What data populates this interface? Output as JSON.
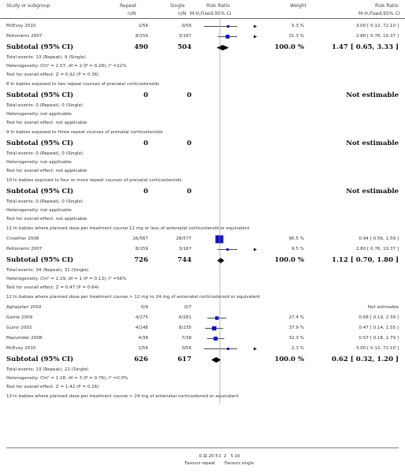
{
  "chart_data": {
    "type": "forest",
    "columns": [
      "Study or subgroup",
      "Repeat",
      "Single",
      "Risk Ratio",
      "Weight",
      "Risk Ratio"
    ],
    "subheaders": {
      "repeat": "n/N",
      "single": "n/N",
      "rr": "M-H,Fixed,95% CI",
      "rr2": "M-H,Fixed,95% CI"
    },
    "x_axis": {
      "scale": "log",
      "ticks": [
        "0.1",
        "0.2",
        "0.5",
        "1",
        "2",
        "5",
        "10"
      ],
      "tick_values": [
        0.1,
        0.2,
        0.5,
        1,
        2,
        5,
        10
      ],
      "left_label": "Favours repeat",
      "right_label": "Favours single"
    },
    "rows": [
      {
        "kind": "study",
        "name": "McEvoy 2010",
        "repeat": "1/56",
        "single": "0/56",
        "est": 3.0,
        "lo": 0.12,
        "hi": 72.1,
        "weight": "5.3 %",
        "ci_text": "3.00 [ 0.12, 72.10 ]"
      },
      {
        "kind": "study",
        "name": "Peltoniemi 2007",
        "repeat": "8/159",
        "single": "3/167",
        "est": 2.8,
        "lo": 0.76,
        "hi": 10.37,
        "weight": "31.3 %",
        "ci_text": "2.80 [ 0.76, 10.37 ]"
      },
      {
        "kind": "subtotal",
        "name": "Subtotal (95% CI)",
        "repeat": "490",
        "single": "504",
        "est": 1.47,
        "lo": 0.65,
        "hi": 3.33,
        "weight": "100.0 %",
        "ci_text": "1.47 [ 0.65, 3.33 ]"
      },
      {
        "kind": "stat",
        "text": "Total events: 13 (Repeat), 9 (Single)"
      },
      {
        "kind": "stat",
        "text": "Heterogeneity: Chi² = 2.57, df = 2 (P = 0.28); I² =22%"
      },
      {
        "kind": "stat",
        "text": "Test for overall effect: Z = 0.92 (P = 0.36)"
      },
      {
        "kind": "group",
        "text": "8 In babies exposed to two repeat courses of prenatal corticosteroids"
      },
      {
        "kind": "subtotal",
        "name": "Subtotal (95% CI)",
        "repeat": "0",
        "single": "0",
        "ci_text": "Not estimable"
      },
      {
        "kind": "stat",
        "text": "Total events: 0 (Repeat), 0 (Single)"
      },
      {
        "kind": "stat",
        "text": "Heterogeneity: not applicable"
      },
      {
        "kind": "stat",
        "text": "Test for overall effect: not applicable"
      },
      {
        "kind": "group",
        "text": "9 In babies exposed to three repeat courses of prenatal corticosteroids"
      },
      {
        "kind": "subtotal",
        "name": "Subtotal (95% CI)",
        "repeat": "0",
        "single": "0",
        "ci_text": "Not estimable"
      },
      {
        "kind": "stat",
        "text": "Total events: 0 (Repeat), 0 (Single)"
      },
      {
        "kind": "stat",
        "text": "Heterogeneity: not applicable"
      },
      {
        "kind": "stat",
        "text": "Test for overall effect: not applicable"
      },
      {
        "kind": "group",
        "text": "10 In babies exposed to four or more repeat courses of prenatal corticosteroids"
      },
      {
        "kind": "subtotal",
        "name": "Subtotal (95% CI)",
        "repeat": "0",
        "single": "0",
        "ci_text": "Not estimable"
      },
      {
        "kind": "stat",
        "text": "Total events: 0 (Repeat), 0 (Single)"
      },
      {
        "kind": "stat",
        "text": "Heterogeneity: not applicable"
      },
      {
        "kind": "stat",
        "text": "Test for overall effect: not applicable"
      },
      {
        "kind": "group",
        "text": "11 In babies where planned dose per treatment course 12 mg or less of antenatal corticosteroid or equivalent"
      },
      {
        "kind": "study",
        "name": "Crowther 2006",
        "repeat": "26/567",
        "single": "28/577",
        "est": 0.94,
        "lo": 0.56,
        "hi": 1.59,
        "weight": "90.5 %",
        "ci_text": "0.94 [ 0.56, 1.59 ]"
      },
      {
        "kind": "study",
        "name": "Peltoniemi 2007",
        "repeat": "8/159",
        "single": "3/167",
        "est": 2.8,
        "lo": 0.76,
        "hi": 10.37,
        "weight": "9.5 %",
        "ci_text": "2.80 [ 0.76, 10.37 ]"
      },
      {
        "kind": "subtotal",
        "name": "Subtotal (95% CI)",
        "repeat": "726",
        "single": "744",
        "est": 1.12,
        "lo": 0.7,
        "hi": 1.8,
        "weight": "100.0 %",
        "ci_text": "1.12 [ 0.70, 1.80 ]"
      },
      {
        "kind": "stat",
        "text": "Total events: 34 (Repeat), 31 (Single)"
      },
      {
        "kind": "stat",
        "text": "Heterogeneity: Chi² = 2.29, df = 1 (P = 0.13); I² =56%"
      },
      {
        "kind": "stat",
        "text": "Test for overall effect: Z = 0.47 (P = 0.64)"
      },
      {
        "kind": "group",
        "text": "12 In babies where planned dose per treatment course > 12 mg to 24 mg of antenatal corticosteroid or equivalent"
      },
      {
        "kind": "study",
        "name": "Aghajafari 2002",
        "repeat": "0/9",
        "single": "0/7",
        "ci_text": "Not estimable"
      },
      {
        "kind": "study",
        "name": "Garite 2009",
        "repeat": "4/275",
        "single": "6/281",
        "est": 0.68,
        "lo": 0.19,
        "hi": 2.39,
        "weight": "27.4 %",
        "ci_text": "0.68 [ 0.19, 2.39 ]"
      },
      {
        "kind": "study",
        "name": "Guinn 2002",
        "repeat": "4/248",
        "single": "8/235",
        "est": 0.47,
        "lo": 0.14,
        "hi": 1.55,
        "weight": "37.9 %",
        "ci_text": "0.47 [ 0.14, 1.55 ]"
      },
      {
        "kind": "study",
        "name": "Mazumder 2008",
        "repeat": "4/38",
        "single": "7/38",
        "est": 0.57,
        "lo": 0.18,
        "hi": 1.79,
        "weight": "32.3 %",
        "ci_text": "0.57 [ 0.18, 1.79 ]"
      },
      {
        "kind": "study",
        "name": "McEvoy 2010",
        "repeat": "1/56",
        "single": "0/56",
        "est": 3.0,
        "lo": 0.12,
        "hi": 72.1,
        "weight": "2.3 %",
        "ci_text": "3.00 [ 0.12, 72.10 ]"
      },
      {
        "kind": "subtotal",
        "name": "Subtotal (95% CI)",
        "repeat": "626",
        "single": "617",
        "est": 0.62,
        "lo": 0.32,
        "hi": 1.2,
        "weight": "100.0 %",
        "ci_text": "0.62 [ 0.32, 1.20 ]"
      },
      {
        "kind": "stat",
        "text": "Total events: 13 (Repeat), 21 (Single)"
      },
      {
        "kind": "stat",
        "text": "Heterogeneity: Chi² = 1.18, df = 3 (P = 0.76); I² =0.0%"
      },
      {
        "kind": "stat",
        "text": "Test for overall effect: Z = 1.42 (P = 0.16)"
      },
      {
        "kind": "group",
        "text": "13 In babies where planned dose per treatment course > 24 mg of antenatal corticosteroid or equivalent"
      }
    ]
  }
}
